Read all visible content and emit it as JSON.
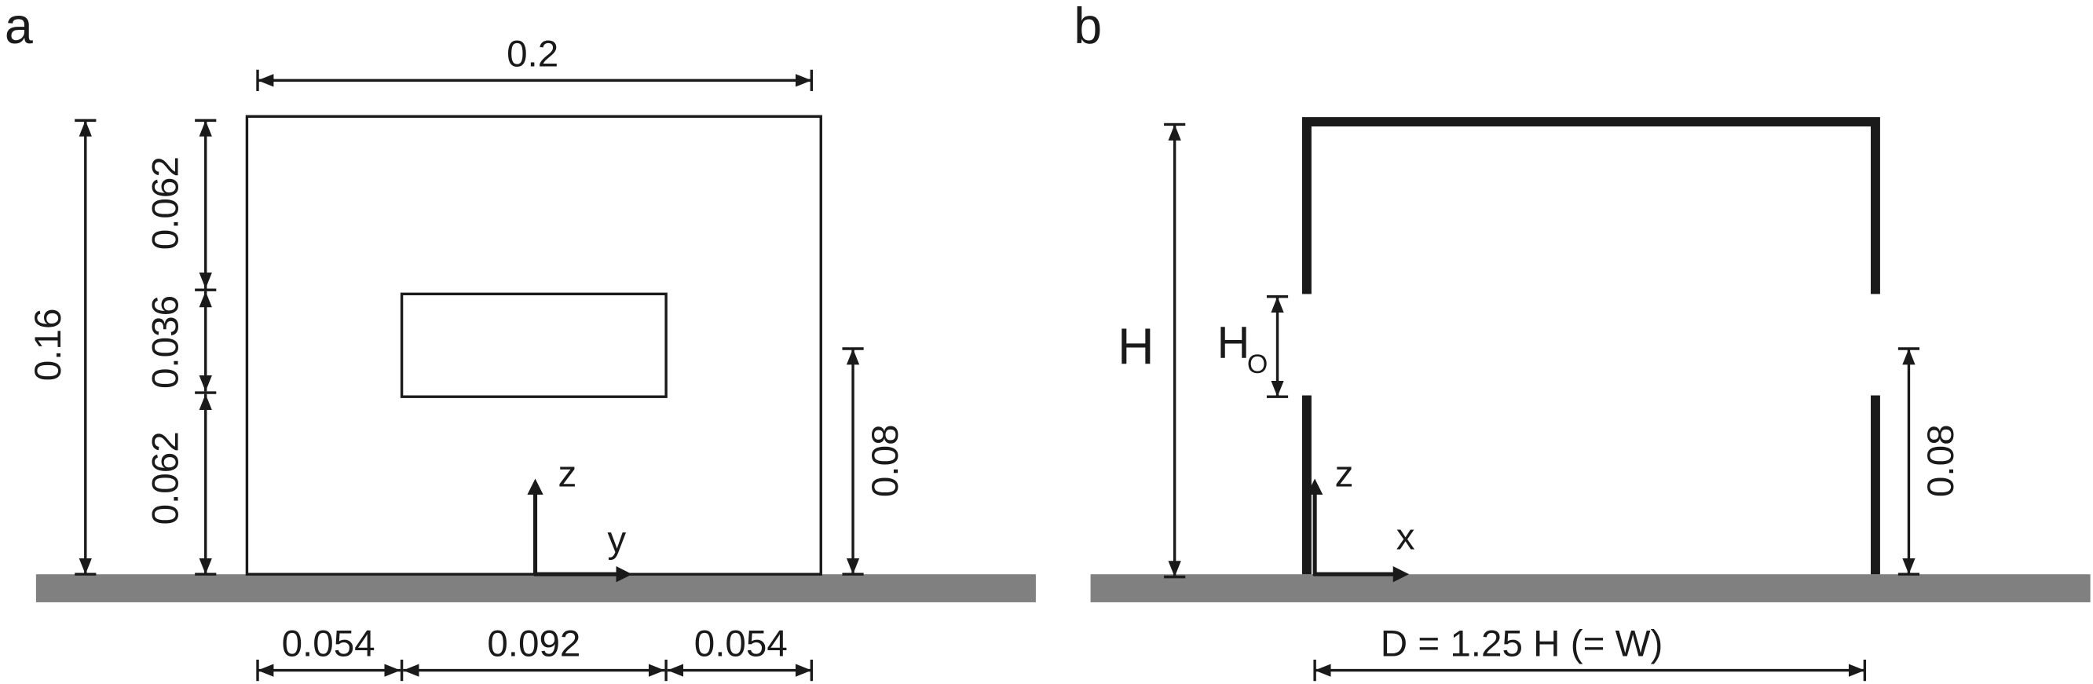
{
  "panel_a": {
    "label": "a",
    "width": "0.2",
    "height": "0.16",
    "upper": "0.062",
    "opening": "0.036",
    "lower": "0.062",
    "opening_height": "0.08",
    "side_left": "0.054",
    "opening_width": "0.092",
    "side_right": "0.054",
    "axis_vertical": "z",
    "axis_horizontal": "y"
  },
  "panel_b": {
    "label": "b",
    "height": "H",
    "opening_symbol": "H",
    "opening_subscript": "O",
    "opening_height": "0.08",
    "depth": "D = 1.25 H (= W)",
    "axis_vertical": "z",
    "axis_horizontal": "x"
  }
}
